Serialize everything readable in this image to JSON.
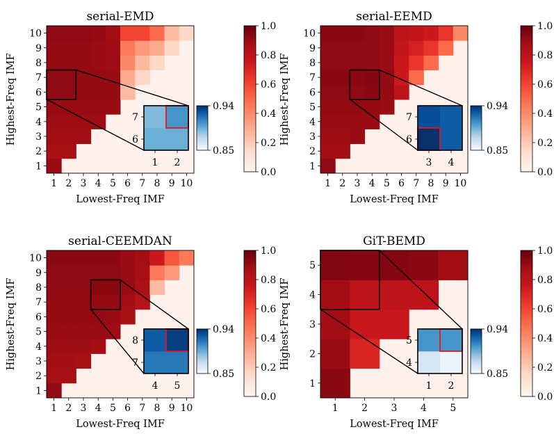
{
  "chart_data": [
    {
      "type": "heatmap",
      "title": "serial-EMD",
      "xlabel": "Lowest-Freq IMF",
      "ylabel": "Highest-Freq IMF",
      "x_ticks": [
        "1",
        "2",
        "3",
        "4",
        "5",
        "6",
        "7",
        "8",
        "9",
        "10"
      ],
      "y_ticks": [
        "1",
        "2",
        "3",
        "4",
        "5",
        "6",
        "7",
        "8",
        "9",
        "10"
      ],
      "colorbar": {
        "ticks": [
          "0.0",
          "0.2",
          "0.4",
          "0.6",
          "0.8",
          "1.0"
        ],
        "range": [
          0,
          1
        ],
        "colormap": "Reds"
      },
      "values": [
        [
          0.9
        ],
        [
          0.87,
          0.87
        ],
        [
          0.88,
          0.88,
          0.88
        ],
        [
          0.89,
          0.89,
          0.89,
          0.89
        ],
        [
          0.9,
          0.9,
          0.9,
          0.9,
          0.9
        ],
        [
          0.92,
          0.92,
          0.91,
          0.91,
          0.91,
          0.25
        ],
        [
          0.92,
          0.92,
          0.91,
          0.91,
          0.9,
          0.3,
          0.15
        ],
        [
          0.91,
          0.91,
          0.91,
          0.9,
          0.89,
          0.4,
          0.25,
          0.15
        ],
        [
          0.91,
          0.91,
          0.91,
          0.9,
          0.89,
          0.45,
          0.35,
          0.3,
          0.15
        ],
        [
          0.92,
          0.92,
          0.92,
          0.91,
          0.88,
          0.6,
          0.6,
          0.5,
          0.25,
          0.15
        ]
      ],
      "highlight": {
        "x": [
          1,
          2
        ],
        "y": [
          6,
          7
        ]
      },
      "inset": {
        "x_ticks": [
          "1",
          "2"
        ],
        "y_ticks": [
          "6",
          "7"
        ],
        "values": [
          [
            0.895,
            0.895
          ],
          [
            0.89,
            0.905
          ]
        ],
        "max_cell": [
          1,
          1
        ],
        "colorbar": {
          "ticks": [
            "0.85",
            "0.94"
          ],
          "range": [
            0.85,
            0.94
          ],
          "colormap": "Blues"
        }
      }
    },
    {
      "type": "heatmap",
      "title": "serial-EEMD",
      "xlabel": "Lowest-Freq IMF",
      "ylabel": "Highest-Freq IMF",
      "x_ticks": [
        "1",
        "2",
        "3",
        "4",
        "5",
        "6",
        "7",
        "8",
        "9",
        "10"
      ],
      "y_ticks": [
        "1",
        "2",
        "3",
        "4",
        "5",
        "6",
        "7",
        "8",
        "9",
        "10"
      ],
      "colorbar": {
        "ticks": [
          "0.0",
          "0.2",
          "0.4",
          "0.6",
          "0.8",
          "1.0"
        ],
        "range": [
          0,
          1
        ],
        "colormap": "Reds"
      },
      "values": [
        [
          0.92
        ],
        [
          0.88,
          0.88
        ],
        [
          0.89,
          0.89,
          0.9
        ],
        [
          0.9,
          0.9,
          0.9,
          0.9
        ],
        [
          0.91,
          0.91,
          0.91,
          0.91,
          0.9
        ],
        [
          0.92,
          0.92,
          0.92,
          0.93,
          0.91,
          0.8
        ],
        [
          0.93,
          0.93,
          0.93,
          0.94,
          0.91,
          0.75,
          0.5
        ],
        [
          0.92,
          0.92,
          0.92,
          0.92,
          0.9,
          0.75,
          0.65,
          0.5
        ],
        [
          0.92,
          0.92,
          0.92,
          0.92,
          0.9,
          0.78,
          0.72,
          0.65,
          0.5
        ],
        [
          0.93,
          0.93,
          0.93,
          0.92,
          0.9,
          0.8,
          0.78,
          0.75,
          0.65,
          0.4
        ]
      ],
      "highlight": {
        "x": [
          3,
          4
        ],
        "y": [
          6,
          7
        ]
      },
      "inset": {
        "x_ticks": [
          "3",
          "4"
        ],
        "y_ticks": [
          "6",
          "7"
        ],
        "values": [
          [
            0.94,
            0.925
          ],
          [
            0.93,
            0.925
          ]
        ],
        "max_cell": [
          0,
          0
        ],
        "colorbar": {
          "ticks": [
            "0.85",
            "0.94"
          ],
          "range": [
            0.85,
            0.94
          ],
          "colormap": "Blues"
        }
      }
    },
    {
      "type": "heatmap",
      "title": "serial-CEEMDAN",
      "xlabel": "Lowest-Freq IMF",
      "ylabel": "Highest-Freq IMF",
      "x_ticks": [
        "1",
        "2",
        "3",
        "4",
        "5",
        "6",
        "7",
        "8",
        "9",
        "10"
      ],
      "y_ticks": [
        "1",
        "2",
        "3",
        "4",
        "5",
        "6",
        "7",
        "8",
        "9",
        "10"
      ],
      "colorbar": {
        "ticks": [
          "0.0",
          "0.2",
          "0.4",
          "0.6",
          "0.8",
          "1.0"
        ],
        "range": [
          0,
          1
        ],
        "colormap": "Reds"
      },
      "values": [
        [
          0.92
        ],
        [
          0.87,
          0.87
        ],
        [
          0.88,
          0.88,
          0.87
        ],
        [
          0.89,
          0.89,
          0.89,
          0.88
        ],
        [
          0.9,
          0.9,
          0.9,
          0.9,
          0.89
        ],
        [
          0.91,
          0.91,
          0.91,
          0.91,
          0.9,
          0.87
        ],
        [
          0.91,
          0.91,
          0.91,
          0.91,
          0.91,
          0.88,
          0.82
        ],
        [
          0.92,
          0.92,
          0.92,
          0.93,
          0.93,
          0.9,
          0.85,
          0.25
        ],
        [
          0.92,
          0.92,
          0.92,
          0.92,
          0.92,
          0.9,
          0.87,
          0.45,
          0.35
        ],
        [
          0.93,
          0.93,
          0.93,
          0.93,
          0.93,
          0.9,
          0.88,
          0.75,
          0.55,
          0.45
        ]
      ],
      "highlight": {
        "x": [
          4,
          5
        ],
        "y": [
          7,
          8
        ]
      },
      "inset": {
        "x_ticks": [
          "4",
          "5"
        ],
        "y_ticks": [
          "7",
          "8"
        ],
        "values": [
          [
            0.915,
            0.915
          ],
          [
            0.925,
            0.935
          ]
        ],
        "max_cell": [
          1,
          1
        ],
        "colorbar": {
          "ticks": [
            "0.85",
            "0.94"
          ],
          "range": [
            0.85,
            0.94
          ],
          "colormap": "Blues"
        }
      }
    },
    {
      "type": "heatmap",
      "title": "GiT-BEMD",
      "xlabel": "Lowest-Freq IMF",
      "ylabel": "Highest-Freq IMF",
      "x_ticks": [
        "1",
        "2",
        "3",
        "4",
        "5"
      ],
      "y_ticks": [
        "1",
        "2",
        "3",
        "4",
        "5"
      ],
      "colorbar": {
        "ticks": [
          "0.0",
          "0.2",
          "0.4",
          "0.6",
          "0.8",
          "1.0"
        ],
        "range": [
          0,
          1
        ],
        "colormap": "Reds"
      },
      "values": [
        [
          0.93
        ],
        [
          0.9,
          0.7
        ],
        [
          0.88,
          0.76,
          0.76
        ],
        [
          0.88,
          0.8,
          0.8,
          0.8
        ],
        [
          0.95,
          0.94,
          0.94,
          0.93,
          0.88
        ]
      ],
      "highlight": {
        "x": [
          1,
          2
        ],
        "y": [
          4,
          5
        ]
      },
      "inset": {
        "x_ticks": [
          "1",
          "2"
        ],
        "y_ticks": [
          "4",
          "5"
        ],
        "values": [
          [
            0.865,
            0.855
          ],
          [
            0.905,
            0.905
          ]
        ],
        "max_cell": [
          1,
          1
        ],
        "colorbar": {
          "ticks": [
            "0.85",
            "0.94"
          ],
          "range": [
            0.85,
            0.94
          ],
          "colormap": "Blues"
        }
      }
    }
  ]
}
